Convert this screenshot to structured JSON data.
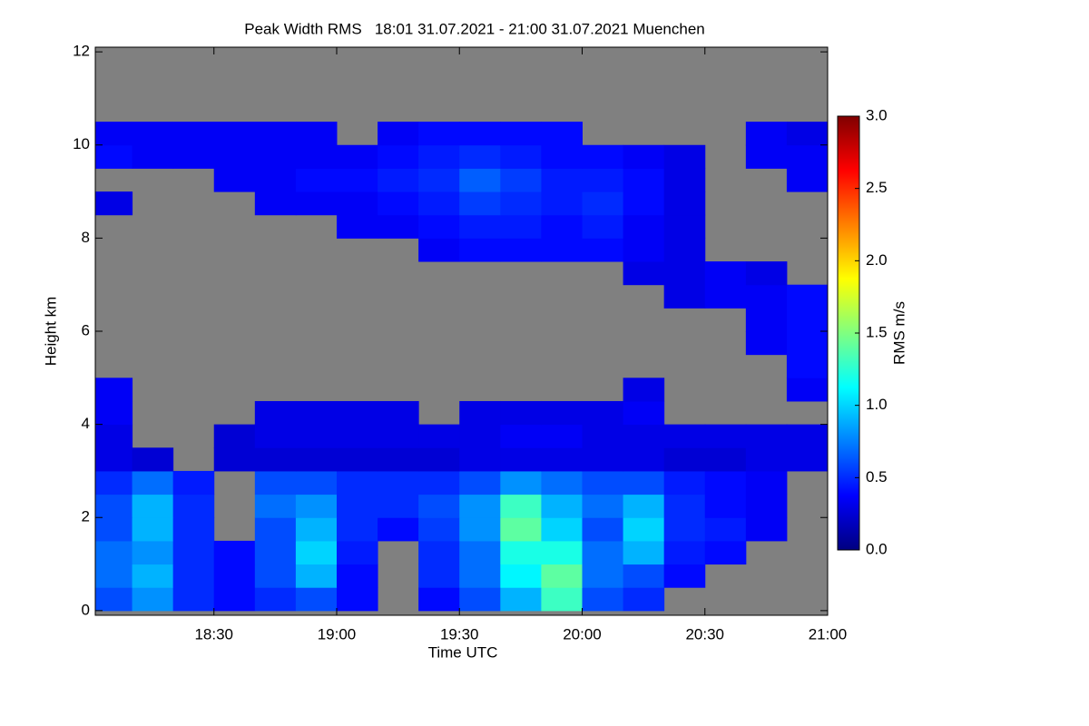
{
  "chart_data": {
    "type": "heatmap",
    "title": "Peak Width RMS   18:01 31.07.2021 - 21:00 31.07.2021 Muenchen",
    "xlabel": "Time UTC",
    "ylabel": "Height km",
    "colorbar_label": "RMS m/s",
    "background": "#808080",
    "colormap": "jet",
    "xlim": [
      18.0167,
      21.0
    ],
    "ylim": [
      -0.1,
      12.1
    ],
    "xticks": [
      {
        "value": 18.5,
        "label": "18:30"
      },
      {
        "value": 19.0,
        "label": "19:00"
      },
      {
        "value": 19.5,
        "label": "19:30"
      },
      {
        "value": 20.0,
        "label": "20:00"
      },
      {
        "value": 20.5,
        "label": "20:30"
      },
      {
        "value": 21.0,
        "label": "21:00"
      }
    ],
    "yticks": [
      0,
      2,
      4,
      6,
      8,
      10,
      12
    ],
    "clim": [
      0,
      3
    ],
    "cticks": [
      {
        "value": 0,
        "label": "0.0"
      },
      {
        "value": 0.5,
        "label": "0.5"
      },
      {
        "value": 1,
        "label": "1.0"
      },
      {
        "value": 1.5,
        "label": "1.5"
      },
      {
        "value": 2,
        "label": "2.0"
      },
      {
        "value": 2.5,
        "label": "2.5"
      },
      {
        "value": 3,
        "label": "3.0"
      }
    ],
    "x_edges": [
      18.0,
      18.1667,
      18.3333,
      18.5,
      18.6667,
      18.8333,
      19.0,
      19.1667,
      19.3333,
      19.5,
      19.6667,
      19.8333,
      20.0,
      20.1667,
      20.3333,
      20.5,
      20.6667,
      20.8333,
      21.0
    ],
    "y_edges": [
      0,
      0.5,
      1,
      1.5,
      2,
      2.5,
      3,
      3.5,
      4,
      4.5,
      5,
      5.5,
      6,
      6.5,
      7,
      7.5,
      8,
      8.5,
      9,
      9.5,
      10,
      10.5,
      11,
      11.5,
      12
    ],
    "z": [
      [
        0.6,
        0.8,
        0.5,
        0.4,
        0.5,
        0.6,
        0.4,
        null,
        0.4,
        0.6,
        0.9,
        1.3,
        0.6,
        0.5,
        null,
        null,
        null,
        null
      ],
      [
        0.7,
        0.9,
        0.5,
        0.4,
        0.6,
        0.9,
        0.4,
        null,
        0.5,
        0.7,
        1.1,
        1.4,
        0.7,
        0.6,
        0.4,
        null,
        null,
        null
      ],
      [
        0.7,
        0.8,
        0.5,
        0.4,
        0.6,
        1.0,
        0.45,
        null,
        0.5,
        0.7,
        1.2,
        1.2,
        0.7,
        0.9,
        0.45,
        0.4,
        null,
        null
      ],
      [
        0.6,
        0.9,
        0.5,
        null,
        0.6,
        0.9,
        0.5,
        0.4,
        0.55,
        0.8,
        1.4,
        1.0,
        0.6,
        1.0,
        0.5,
        0.45,
        0.35,
        null
      ],
      [
        0.6,
        0.9,
        0.5,
        null,
        0.7,
        0.8,
        0.5,
        0.5,
        0.6,
        0.8,
        1.3,
        0.9,
        0.7,
        0.9,
        0.5,
        0.4,
        0.35,
        null
      ],
      [
        0.5,
        0.7,
        0.45,
        null,
        0.6,
        0.6,
        0.5,
        0.5,
        0.5,
        0.6,
        0.8,
        0.7,
        0.6,
        0.6,
        0.45,
        0.4,
        0.35,
        null
      ],
      [
        0.3,
        0.25,
        null,
        0.25,
        0.25,
        0.25,
        0.25,
        0.25,
        0.25,
        0.3,
        0.3,
        0.3,
        0.3,
        0.3,
        0.25,
        0.25,
        0.3,
        0.3
      ],
      [
        0.3,
        null,
        null,
        0.25,
        0.3,
        0.3,
        0.3,
        0.3,
        0.3,
        0.3,
        0.35,
        0.35,
        0.3,
        0.3,
        0.3,
        0.3,
        0.3,
        0.3
      ],
      [
        0.35,
        null,
        null,
        null,
        0.3,
        0.3,
        0.3,
        0.3,
        null,
        0.3,
        0.3,
        0.3,
        0.3,
        0.35,
        null,
        null,
        null,
        null
      ],
      [
        0.35,
        null,
        null,
        null,
        null,
        null,
        null,
        null,
        null,
        null,
        null,
        null,
        null,
        0.3,
        null,
        null,
        null,
        0.35
      ],
      [
        null,
        null,
        null,
        null,
        null,
        null,
        null,
        null,
        null,
        null,
        null,
        null,
        null,
        null,
        null,
        null,
        null,
        0.4
      ],
      [
        null,
        null,
        null,
        null,
        null,
        null,
        null,
        null,
        null,
        null,
        null,
        null,
        null,
        null,
        null,
        null,
        0.35,
        0.4
      ],
      [
        null,
        null,
        null,
        null,
        null,
        null,
        null,
        null,
        null,
        null,
        null,
        null,
        null,
        null,
        null,
        null,
        0.35,
        0.4
      ],
      [
        null,
        null,
        null,
        null,
        null,
        null,
        null,
        null,
        null,
        null,
        null,
        null,
        null,
        null,
        0.3,
        0.35,
        0.35,
        0.4
      ],
      [
        null,
        null,
        null,
        null,
        null,
        null,
        null,
        null,
        null,
        null,
        null,
        null,
        null,
        0.3,
        0.3,
        0.35,
        0.3,
        null
      ],
      [
        null,
        null,
        null,
        null,
        null,
        null,
        null,
        null,
        0.35,
        0.4,
        0.4,
        0.4,
        0.4,
        0.35,
        0.3,
        null,
        null,
        null
      ],
      [
        null,
        null,
        null,
        null,
        null,
        null,
        0.35,
        0.35,
        0.4,
        0.45,
        0.45,
        0.4,
        0.45,
        0.35,
        0.3,
        null,
        null,
        null
      ],
      [
        0.3,
        null,
        null,
        null,
        0.35,
        0.35,
        0.35,
        0.4,
        0.45,
        0.55,
        0.5,
        0.45,
        0.5,
        0.4,
        0.3,
        null,
        null,
        null
      ],
      [
        null,
        null,
        null,
        0.35,
        0.35,
        0.4,
        0.4,
        0.45,
        0.5,
        0.65,
        0.55,
        0.45,
        0.45,
        0.4,
        0.3,
        null,
        null,
        0.35
      ],
      [
        0.4,
        0.35,
        0.35,
        0.35,
        0.35,
        0.35,
        0.35,
        0.4,
        0.45,
        0.5,
        0.45,
        0.4,
        0.4,
        0.35,
        0.3,
        null,
        0.35,
        0.35
      ],
      [
        0.35,
        0.35,
        0.35,
        0.35,
        0.35,
        0.35,
        null,
        0.35,
        0.4,
        0.4,
        0.4,
        0.4,
        null,
        null,
        null,
        null,
        0.35,
        0.3
      ],
      [
        null,
        null,
        null,
        null,
        null,
        null,
        null,
        null,
        null,
        null,
        null,
        null,
        null,
        null,
        null,
        null,
        null,
        null
      ],
      [
        null,
        null,
        null,
        null,
        null,
        null,
        null,
        null,
        null,
        null,
        null,
        null,
        null,
        null,
        null,
        null,
        null,
        null
      ],
      [
        null,
        null,
        null,
        null,
        null,
        null,
        null,
        null,
        null,
        null,
        null,
        null,
        null,
        null,
        null,
        null,
        null,
        null
      ]
    ]
  }
}
